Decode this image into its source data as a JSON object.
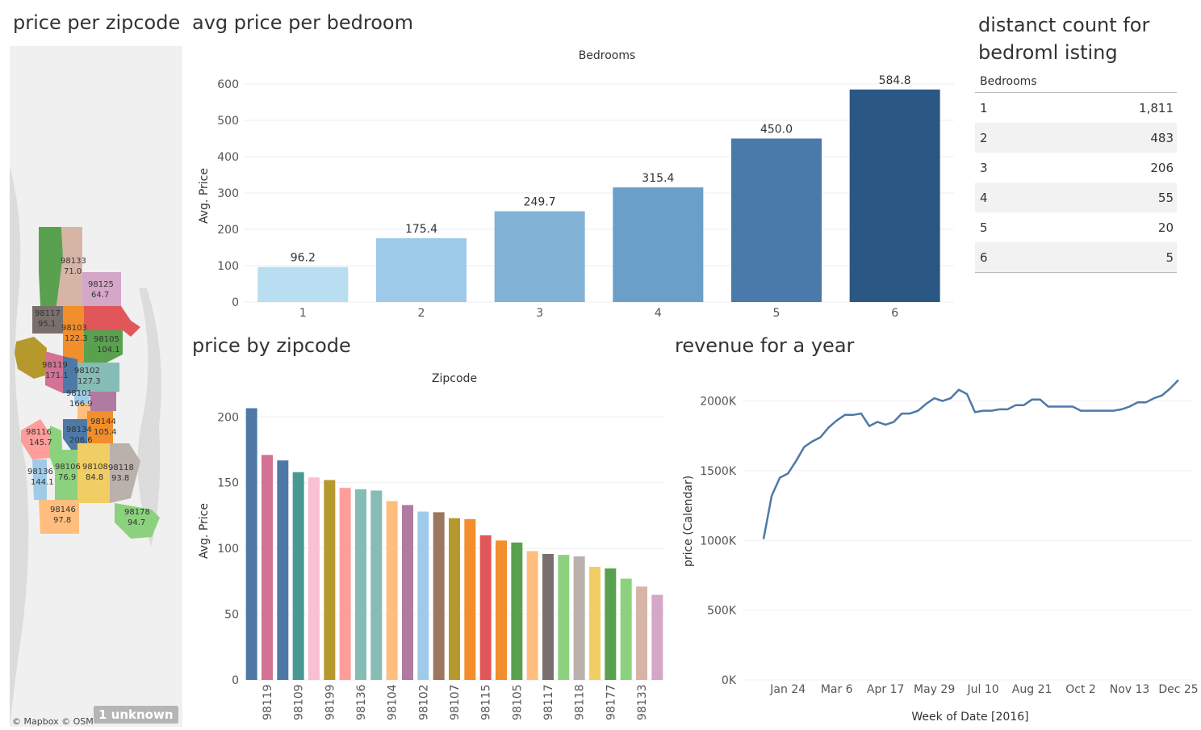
{
  "titles": {
    "zip_map": "price per zipcode",
    "bedroom": "avg price per bedroom",
    "count": "distanct count for bedroml isting",
    "zip_bar": "price by zipcode",
    "revenue": "revenue for a year"
  },
  "map": {
    "attribution": "© Mapbox © OSM",
    "unknown": "1 unknown",
    "labels": [
      {
        "zip": "98133",
        "price": "71.0"
      },
      {
        "zip": "98125",
        "price": "64.7"
      },
      {
        "zip": "98117",
        "price": "95.1"
      },
      {
        "zip": "98103",
        "price": "122.3"
      },
      {
        "zip": "98105",
        "price": "104.1"
      },
      {
        "zip": "98119",
        "price": "171.1"
      },
      {
        "zip": "98102",
        "price": "127.3"
      },
      {
        "zip": "98101",
        "price": "166.9"
      },
      {
        "zip": "98116",
        "price": "145.7"
      },
      {
        "zip": "98134",
        "price": "206.6"
      },
      {
        "zip": "98144",
        "price": "105.4"
      },
      {
        "zip": "98136",
        "price": "144.1"
      },
      {
        "zip": "98106",
        "price": "76.9"
      },
      {
        "zip": "98108",
        "price": "84.8"
      },
      {
        "zip": "98118",
        "price": "93.8"
      },
      {
        "zip": "98146",
        "price": "97.8"
      },
      {
        "zip": "98178",
        "price": "94.7"
      }
    ]
  },
  "count_table": {
    "header": "Bedrooms",
    "rows": [
      {
        "bedrooms": "1",
        "count": "1,811"
      },
      {
        "bedrooms": "2",
        "count": "483"
      },
      {
        "bedrooms": "3",
        "count": "206"
      },
      {
        "bedrooms": "4",
        "count": "55"
      },
      {
        "bedrooms": "5",
        "count": "20"
      },
      {
        "bedrooms": "6",
        "count": "5"
      }
    ]
  },
  "chart_data": [
    {
      "type": "bar",
      "title": "avg price per bedroom",
      "xlabel": "Bedrooms",
      "ylabel": "Avg. Price",
      "categories": [
        "1",
        "2",
        "3",
        "4",
        "5",
        "6"
      ],
      "values": [
        96.2,
        175.4,
        249.7,
        315.4,
        450.0,
        584.8
      ],
      "value_labels": [
        "96.2",
        "175.4",
        "249.7",
        "315.4",
        "450.0",
        "584.8"
      ],
      "ylim": [
        0,
        600
      ],
      "yticks": [
        "0",
        "100",
        "200",
        "300",
        "400",
        "500",
        "600"
      ],
      "colors": [
        "#b9ddf1",
        "#9ecae9",
        "#82b2d6",
        "#6a9fc9",
        "#4a7aa9",
        "#2a5783"
      ]
    },
    {
      "type": "bar",
      "title": "price by zipcode",
      "xlabel": "Zipcode",
      "ylabel": "Avg. Price",
      "values": [
        206.6,
        171.1,
        166.9,
        158.0,
        154.0,
        152.0,
        146.0,
        145.0,
        144.0,
        136.0,
        133.0,
        128.0,
        127.5,
        123.0,
        122.3,
        110.0,
        106.0,
        104.5,
        98.0,
        95.8,
        95.1,
        94.0,
        86.0,
        84.8,
        77.0,
        71.0,
        64.7
      ],
      "visible_labels": [
        "98119",
        "98109",
        "98199",
        "98136",
        "98104",
        "98102",
        "98107",
        "98115",
        "98105",
        "98117",
        "98118",
        "98177",
        "98133"
      ],
      "ylim": [
        0,
        210
      ],
      "yticks": [
        "0",
        "50",
        "100",
        "150",
        "200"
      ],
      "colors": [
        "#4e79a7",
        "#d37295",
        "#4e79a7",
        "#499894",
        "#fabfd2",
        "#b6992d",
        "#ff9d9a",
        "#86bcb6",
        "#86bcb6",
        "#ffbe7d",
        "#b07aa1",
        "#a0cbe8",
        "#9d7660",
        "#b6992d",
        "#f28e2b",
        "#e15759",
        "#f28e2b",
        "#59a14f",
        "#ffbe7d",
        "#79706e",
        "#8cd17d",
        "#bab0ac",
        "#f1ce63",
        "#59a14f",
        "#8cd17d",
        "#d7b5a6",
        "#d4a6c8"
      ]
    },
    {
      "type": "line",
      "title": "revenue for a year",
      "xlabel": "Week of Date [2016]",
      "ylabel": "price (Calendar)",
      "xticks": [
        "Jan 24",
        "Mar 6",
        "Apr 17",
        "May 29",
        "Jul 10",
        "Aug 21",
        "Oct 2",
        "Nov 13",
        "Dec 25"
      ],
      "yticks": [
        "0K",
        "500K",
        "1000K",
        "1500K",
        "2000K"
      ],
      "ylim": [
        0,
        2200000
      ],
      "x": [
        "Jan 3",
        "Jan 10",
        "Jan 17",
        "Jan 24",
        "Jan 31",
        "Feb 7",
        "Feb 14",
        "Feb 21",
        "Feb 28",
        "Mar 6",
        "Mar 13",
        "Mar 20",
        "Mar 27",
        "Apr 3",
        "Apr 10",
        "Apr 17",
        "Apr 24",
        "May 1",
        "May 8",
        "May 15",
        "May 22",
        "May 29",
        "Jun 5",
        "Jun 12",
        "Jun 19",
        "Jun 26",
        "Jul 3",
        "Jul 10",
        "Jul 17",
        "Jul 24",
        "Jul 31",
        "Aug 7",
        "Aug 14",
        "Aug 21",
        "Aug 28",
        "Sep 4",
        "Sep 11",
        "Sep 18",
        "Sep 25",
        "Oct 2",
        "Oct 9",
        "Oct 16",
        "Oct 23",
        "Oct 30",
        "Nov 6",
        "Nov 13",
        "Nov 20",
        "Nov 27",
        "Dec 4",
        "Dec 11",
        "Dec 18",
        "Dec 25"
      ],
      "values": [
        1010000,
        1320000,
        1450000,
        1480000,
        1570000,
        1670000,
        1710000,
        1740000,
        1810000,
        1860000,
        1900000,
        1900000,
        1910000,
        1820000,
        1850000,
        1830000,
        1850000,
        1910000,
        1910000,
        1930000,
        1980000,
        2020000,
        2000000,
        2020000,
        2080000,
        2050000,
        1920000,
        1930000,
        1930000,
        1940000,
        1940000,
        1970000,
        1970000,
        2010000,
        2010000,
        1960000,
        1960000,
        1960000,
        1960000,
        1930000,
        1930000,
        1930000,
        1930000,
        1930000,
        1940000,
        1960000,
        1990000,
        1990000,
        2020000,
        2040000,
        2090000,
        2150000
      ],
      "color": "#4e79a7"
    }
  ]
}
